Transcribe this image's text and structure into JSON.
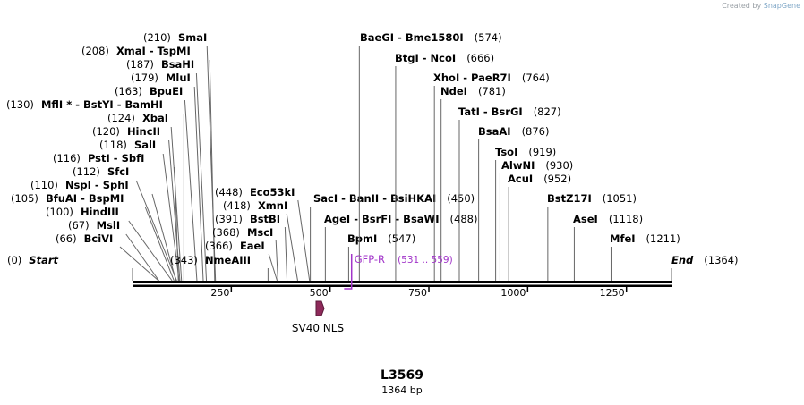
{
  "credit": {
    "prefix": "Created by ",
    "brand": "SnapGene"
  },
  "map": {
    "name": "L3569",
    "length_label": "1364 bp",
    "total_bp": 1364,
    "ticks": [
      250,
      500,
      750,
      1000,
      1250
    ],
    "enzymes": [
      {
        "id": "start",
        "label": "Start",
        "pos": "(0)",
        "bp": 0,
        "italic": true
      },
      {
        "id": "bcivi",
        "label": "BciVI",
        "pos": "(66)",
        "bp": 66
      },
      {
        "id": "msli",
        "label": "MslI",
        "pos": "(67)",
        "bp": 67
      },
      {
        "id": "hindiii",
        "label": "HindIII",
        "pos": "(100)",
        "bp": 100
      },
      {
        "id": "bfuai",
        "label": "BfuAI  -  BspMI",
        "pos": "(105)",
        "bp": 105
      },
      {
        "id": "nspi",
        "label": "NspI  -  SphI",
        "pos": "(110)",
        "bp": 110
      },
      {
        "id": "sfci",
        "label": "SfcI",
        "pos": "(112)",
        "bp": 112
      },
      {
        "id": "psti",
        "label": "PstI  -  SbfI",
        "pos": "(116)",
        "bp": 116
      },
      {
        "id": "sali",
        "label": "SalI",
        "pos": "(118)",
        "bp": 118
      },
      {
        "id": "hincii",
        "label": "HincII",
        "pos": "(120)",
        "bp": 120
      },
      {
        "id": "xbai",
        "label": "XbaI",
        "pos": "(124)",
        "bp": 124
      },
      {
        "id": "mfli",
        "label": "MflI *  -  BstYI  -  BamHI",
        "pos": "(130)",
        "bp": 130
      },
      {
        "id": "bpuei",
        "label": "BpuEI",
        "pos": "(163)",
        "bp": 163
      },
      {
        "id": "mlui",
        "label": "MluI",
        "pos": "(179)",
        "bp": 179
      },
      {
        "id": "bsahi",
        "label": "BsaHI",
        "pos": "(187)",
        "bp": 187
      },
      {
        "id": "xmai",
        "label": "XmaI  -  TspMI",
        "pos": "(208)",
        "bp": 208
      },
      {
        "id": "smai",
        "label": "SmaI",
        "pos": "(210)",
        "bp": 210
      },
      {
        "id": "nmeaiii",
        "label": "NmeAIII",
        "pos": "(343)",
        "bp": 343
      },
      {
        "id": "eaei",
        "label": "EaeI",
        "pos": "(366)",
        "bp": 366
      },
      {
        "id": "msci",
        "label": "MscI",
        "pos": "(368)",
        "bp": 368
      },
      {
        "id": "bstbi",
        "label": "BstBI",
        "pos": "(391)",
        "bp": 391
      },
      {
        "id": "xmni",
        "label": "XmnI",
        "pos": "(418)",
        "bp": 418
      },
      {
        "id": "eco53ki",
        "label": "Eco53kI",
        "pos": "(448)",
        "bp": 448
      },
      {
        "id": "saci",
        "label": "SacI  -  BanII  -  BsiHKAI",
        "pos": "(450)",
        "bp": 450
      },
      {
        "id": "agei",
        "label": "AgeI  -  BsrFI  -  BsaWI",
        "pos": "(488)",
        "bp": 488
      },
      {
        "id": "bpmi",
        "label": "BpmI",
        "pos": "(547)",
        "bp": 547
      },
      {
        "id": "baegi",
        "label": "BaeGI  -  Bme1580I",
        "pos": "(574)",
        "bp": 574
      },
      {
        "id": "btgi",
        "label": "BtgI  -  NcoI",
        "pos": "(666)",
        "bp": 666
      },
      {
        "id": "xhoi",
        "label": "XhoI  -  PaeR7I",
        "pos": "(764)",
        "bp": 764
      },
      {
        "id": "ndei",
        "label": "NdeI",
        "pos": "(781)",
        "bp": 781
      },
      {
        "id": "tati",
        "label": "TatI  -  BsrGI",
        "pos": "(827)",
        "bp": 827
      },
      {
        "id": "bsaai",
        "label": "BsaAI",
        "pos": "(876)",
        "bp": 876
      },
      {
        "id": "tsoi",
        "label": "TsoI",
        "pos": "(919)",
        "bp": 919
      },
      {
        "id": "alwni",
        "label": "AlwNI",
        "pos": "(930)",
        "bp": 930
      },
      {
        "id": "acui",
        "label": "AcuI",
        "pos": "(952)",
        "bp": 952
      },
      {
        "id": "bstz17i",
        "label": "BstZ17I",
        "pos": "(1051)",
        "bp": 1051
      },
      {
        "id": "asei",
        "label": "AseI",
        "pos": "(1118)",
        "bp": 1118
      },
      {
        "id": "mfei",
        "label": "MfeI",
        "pos": "(1211)",
        "bp": 1211
      },
      {
        "id": "end",
        "label": "End",
        "pos": "(1364)",
        "bp": 1364,
        "italic": true
      }
    ],
    "primer": {
      "label": "GFP-R",
      "range": "(531 .. 559)",
      "color": "#a134c9"
    },
    "feature": {
      "label": "SV40 NLS",
      "color": "#8e2a5a"
    }
  }
}
